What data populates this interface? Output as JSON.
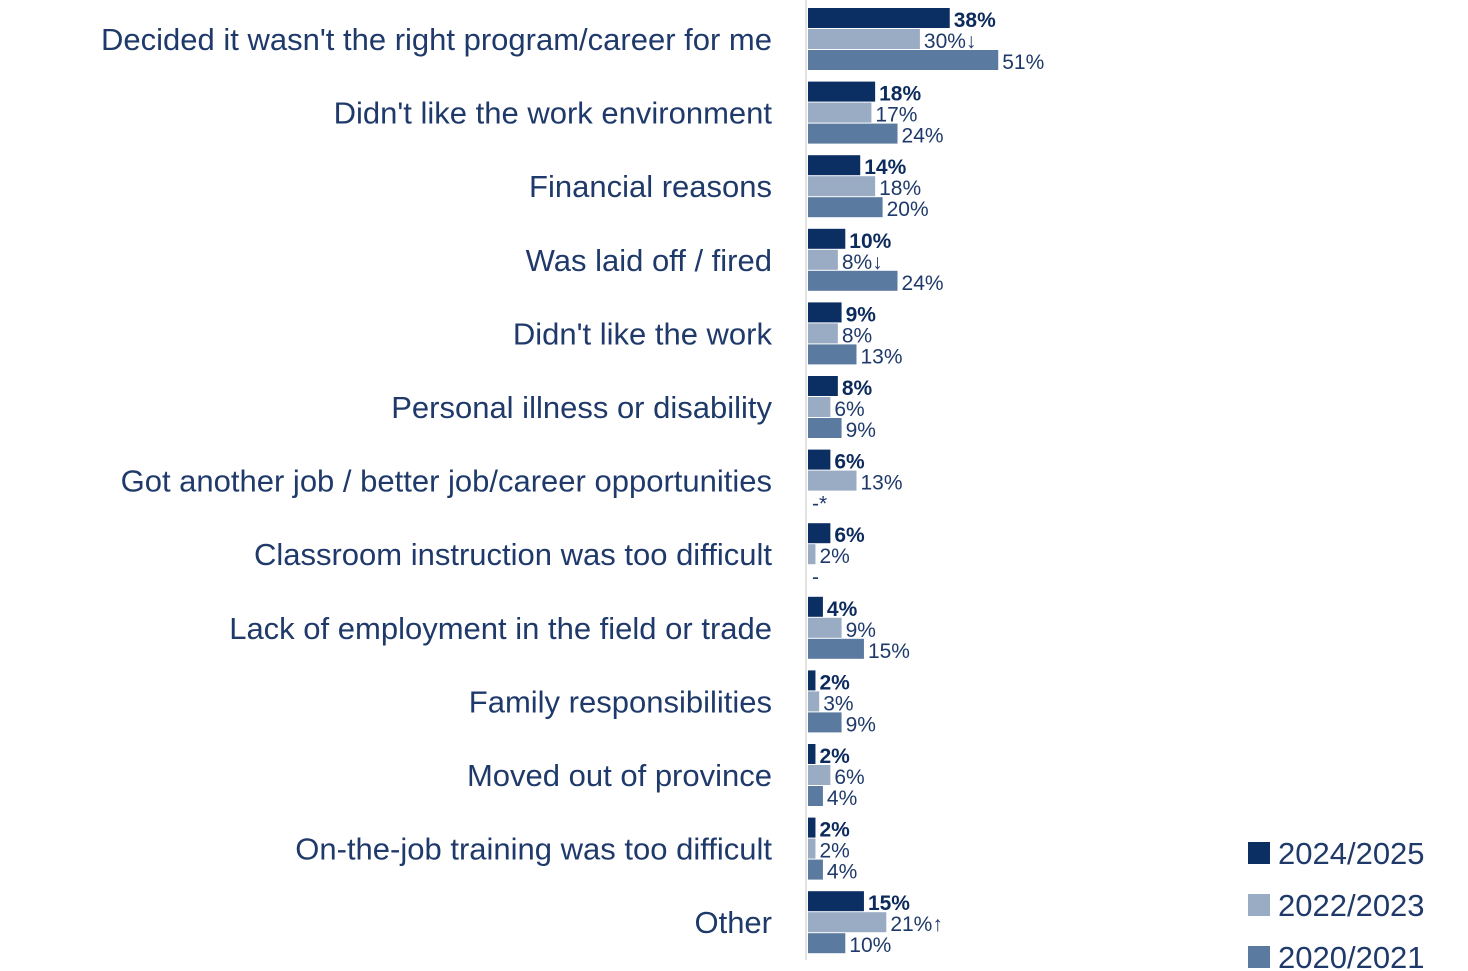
{
  "chart_data": {
    "type": "bar",
    "orientation": "horizontal",
    "categories": [
      "Decided it wasn't the right program/career for me",
      "Didn't like the work environment",
      "Financial reasons",
      "Was laid off / fired",
      "Didn't like the work",
      "Personal illness or disability",
      "Got another job / better job/career opportunities",
      "Classroom instruction was too difficult",
      "Lack of employment in the field or trade",
      "Family responsibilities",
      "Moved out of province",
      "On-the-job training was too difficult",
      "Other"
    ],
    "series": [
      {
        "name": "2024/2025",
        "color": "#0c2f63",
        "bold_labels": true,
        "values": [
          38,
          18,
          14,
          10,
          9,
          8,
          6,
          6,
          4,
          2,
          2,
          2,
          15
        ],
        "labels": [
          "38%",
          "18%",
          "14%",
          "10%",
          "9%",
          "8%",
          "6%",
          "6%",
          "4%",
          "2%",
          "2%",
          "2%",
          "15%"
        ]
      },
      {
        "name": "2022/2023",
        "color": "#9aabc4",
        "bold_labels": false,
        "values": [
          30,
          17,
          18,
          8,
          8,
          6,
          13,
          2,
          9,
          3,
          6,
          2,
          21
        ],
        "labels": [
          "30%↓",
          "17%",
          "18%",
          "8%↓",
          "8%",
          "6%",
          "13%",
          "2%",
          "9%",
          "3%",
          "6%",
          "2%",
          "21%↑"
        ]
      },
      {
        "name": "2020/2021",
        "color": "#5b7aa0",
        "bold_labels": false,
        "values": [
          51,
          24,
          20,
          24,
          13,
          9,
          null,
          null,
          15,
          9,
          4,
          4,
          10
        ],
        "labels": [
          "51%",
          "24%",
          "20%",
          "24%",
          "13%",
          "9%",
          "-*",
          "-",
          "15%",
          "9%",
          "4%",
          "4%",
          "10%"
        ]
      }
    ],
    "legend_position": "bottom-right",
    "grid": false,
    "title": "",
    "xlabel": "",
    "ylabel": ""
  }
}
